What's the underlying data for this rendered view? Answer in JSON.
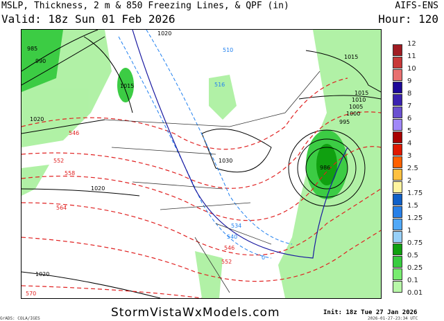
{
  "header": {
    "title": "MSLP, Thickness, 2 m & 850 Freezing Lines, & QPF (in)",
    "model": "AIFS-ENS",
    "valid": "Valid: 18z Sun 01 Feb 2026",
    "hour": "Hour: 120"
  },
  "legend": {
    "labels": [
      "12",
      "11",
      "10",
      "9",
      "8",
      "7",
      "6",
      "5",
      "4",
      "3",
      "2.5",
      "2",
      "1.75",
      "1.5",
      "1.25",
      "1",
      "0.75",
      "0.5",
      "0.25",
      "0.1",
      "0.01"
    ],
    "colors": [
      "#a01c22",
      "#c83838",
      "#e87070",
      "#1c0898",
      "#3a22b0",
      "#6a50d0",
      "#a088f8",
      "#a80000",
      "#e01800",
      "#ff6000",
      "#ffc040",
      "#fff4a0",
      "#1060c8",
      "#2880e8",
      "#50a8f8",
      "#98d0f8",
      "#10a010",
      "#38cc40",
      "#78ec70",
      "#b8f8a8"
    ]
  },
  "map": {
    "isobars": [
      "985",
      "990",
      "1015",
      "1020",
      "1020",
      "1020",
      "1020",
      "1030",
      "1015",
      "1010",
      "1005",
      "1000",
      "995",
      "986",
      "1015"
    ],
    "thickness": [
      "546",
      "552",
      "558",
      "564",
      "570",
      "546",
      "552",
      "534",
      "540"
    ],
    "freezing": [
      "516",
      "510",
      "534",
      "540",
      "0"
    ]
  },
  "footer": {
    "site": "StormVistaWxModels.com",
    "init": "Init: 18z Tue 27 Jan 2026",
    "timestamp": "2026-01-27-23:34 UTC",
    "credit": "GrADS: COLA/IGES"
  }
}
